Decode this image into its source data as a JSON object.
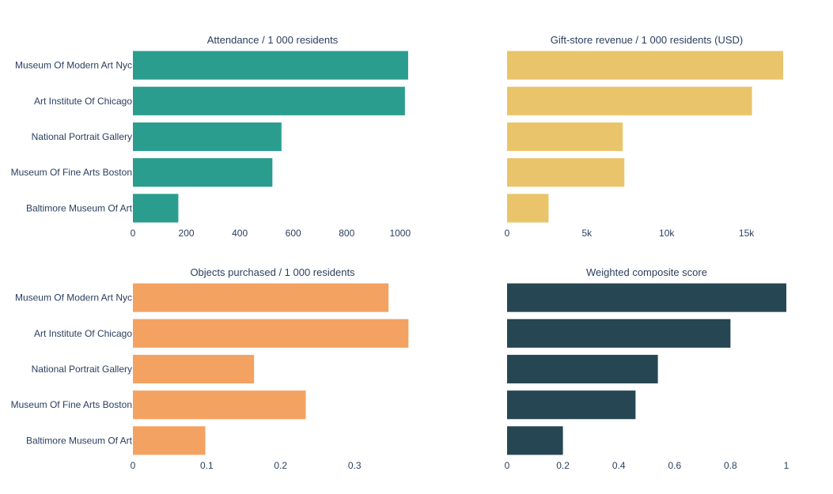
{
  "chart_data": [
    {
      "type": "bar",
      "orientation": "horizontal",
      "title": "Attendance / 1 000 residents",
      "categories": [
        "Museum Of Modern Art Nyc",
        "Art Institute Of Chicago",
        "National Portrait Gallery",
        "Museum Of Fine Arts Boston",
        "Baltimore Museum Of Art"
      ],
      "values": [
        1030,
        1018,
        556,
        522,
        170
      ],
      "xlim": [
        0,
        1045
      ],
      "xticks": [
        0,
        200,
        400,
        600,
        800,
        1000
      ],
      "xtick_labels": [
        "0",
        "200",
        "400",
        "600",
        "800",
        "1000"
      ],
      "color": "#2a9d8f",
      "grid": false
    },
    {
      "type": "bar",
      "orientation": "horizontal",
      "title": "Gift-store revenue / 1 000 residents (USD)",
      "categories": [
        "Museum Of Modern Art Nyc",
        "Art Institute Of Chicago",
        "National Portrait Gallery",
        "Museum Of Fine Arts Boston",
        "Baltimore Museum Of Art"
      ],
      "values": [
        17300,
        15350,
        7250,
        7350,
        2600
      ],
      "xlim": [
        0,
        17500
      ],
      "xticks": [
        0,
        5000,
        10000,
        15000
      ],
      "xtick_labels": [
        "0",
        "5k",
        "10k",
        "15k"
      ],
      "color": "#e9c46a",
      "grid": false
    },
    {
      "type": "bar",
      "orientation": "horizontal",
      "title": "Objects purchased / 1 000 residents",
      "categories": [
        "Museum Of Modern Art Nyc",
        "Art Institute Of Chicago",
        "National Portrait Gallery",
        "Museum Of Fine Arts Boston",
        "Baltimore Museum Of Art"
      ],
      "values": [
        0.346,
        0.373,
        0.164,
        0.234,
        0.098
      ],
      "xlim": [
        0,
        0.378
      ],
      "xticks": [
        0,
        0.1,
        0.2,
        0.3
      ],
      "xtick_labels": [
        "0",
        "0.1",
        "0.2",
        "0.3"
      ],
      "color": "#f4a261",
      "grid": false
    },
    {
      "type": "bar",
      "orientation": "horizontal",
      "title": "Weighted composite score",
      "categories": [
        "Museum Of Modern Art Nyc",
        "Art Institute Of Chicago",
        "National Portrait Gallery",
        "Museum Of Fine Arts Boston",
        "Baltimore Museum Of Art"
      ],
      "values": [
        1.0,
        0.8,
        0.54,
        0.46,
        0.2
      ],
      "xlim": [
        0,
        1.0
      ],
      "xticks": [
        0,
        0.2,
        0.4,
        0.6,
        0.8,
        1
      ],
      "xtick_labels": [
        "0",
        "0.2",
        "0.4",
        "0.6",
        "0.8",
        "1"
      ],
      "color": "#264653",
      "grid": false
    }
  ]
}
